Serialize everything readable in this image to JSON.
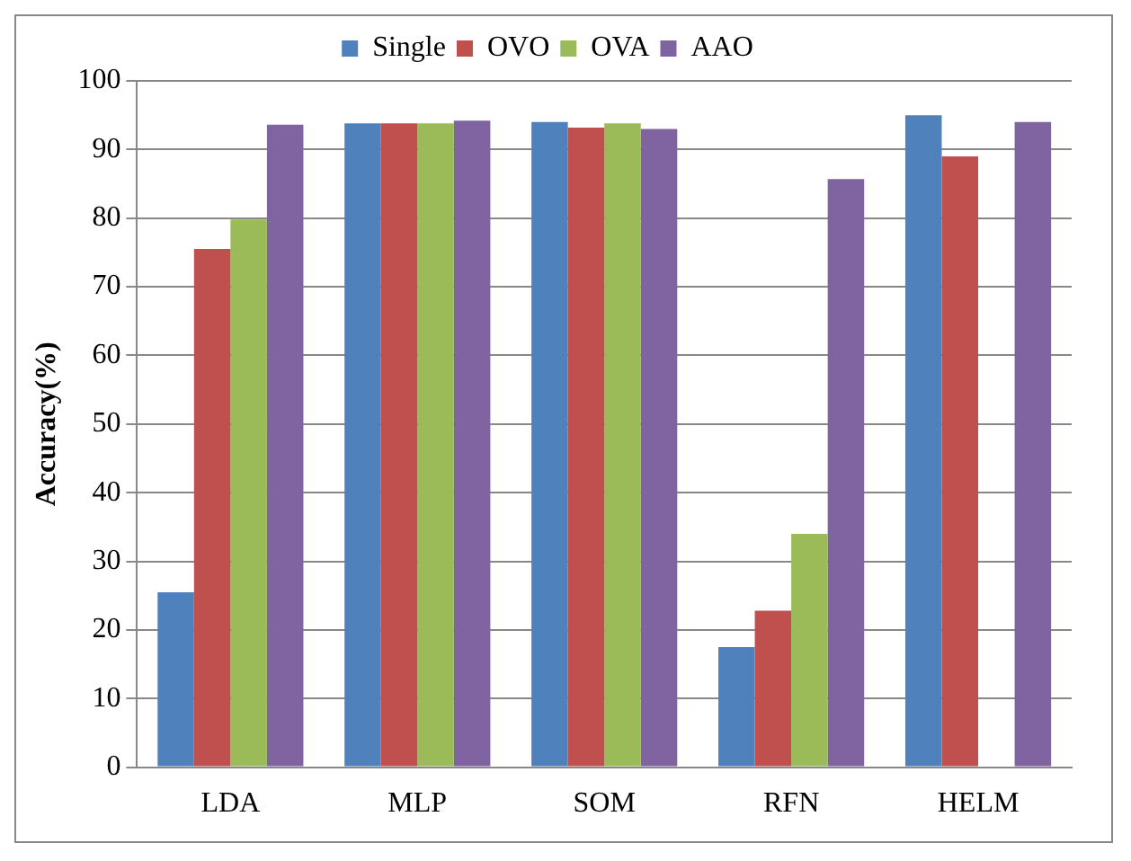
{
  "chart_data": {
    "type": "bar",
    "ylabel": "Accuracy(%)",
    "categories": [
      "LDA",
      "MLP",
      "SOM",
      "RFN",
      "HELM"
    ],
    "series": [
      {
        "name": "Single",
        "color": "#4f81bd",
        "values": [
          25.5,
          93.8,
          94,
          17.5,
          95
        ]
      },
      {
        "name": "OVO",
        "color": "#c0504d",
        "values": [
          75.5,
          93.8,
          93.2,
          22.8,
          89
        ]
      },
      {
        "name": "OVA",
        "color": "#9bbb59",
        "values": [
          79.8,
          93.8,
          93.8,
          34,
          null
        ]
      },
      {
        "name": "AAO",
        "color": "#8064a2",
        "values": [
          93.6,
          94.2,
          93,
          85.7,
          94
        ]
      }
    ],
    "ylim": [
      0,
      100
    ],
    "yticks": [
      0,
      10,
      20,
      30,
      40,
      50,
      60,
      70,
      80,
      90,
      100
    ],
    "grid": "y",
    "legend": "top"
  }
}
